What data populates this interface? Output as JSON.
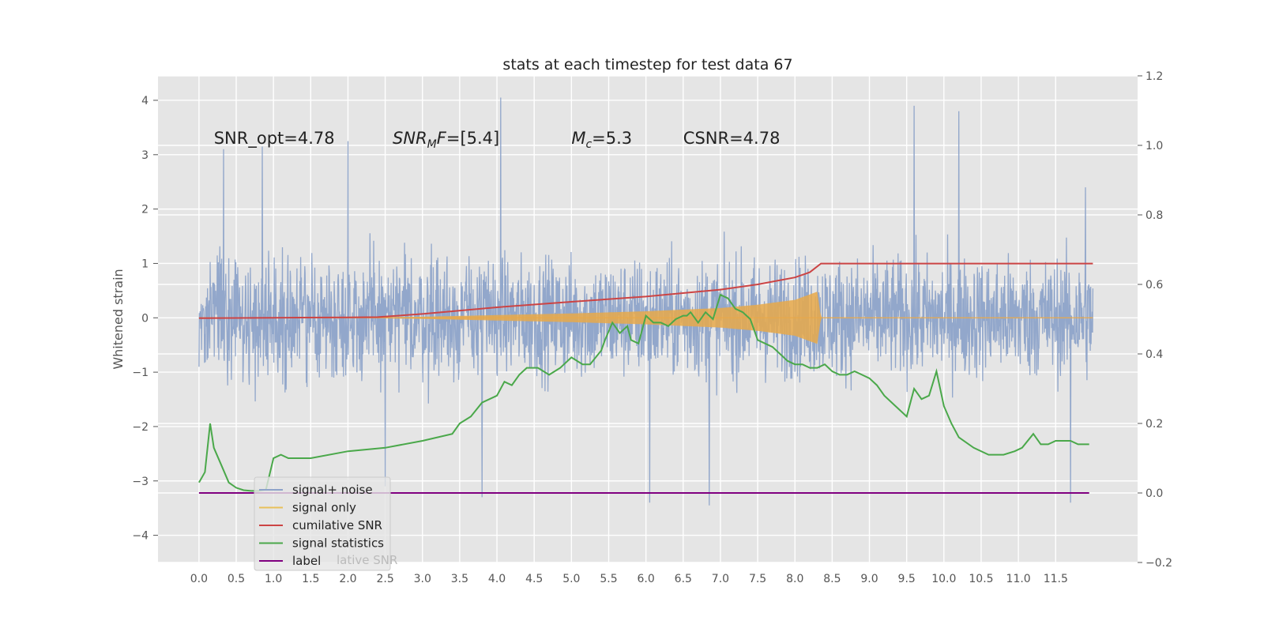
{
  "chart_data": {
    "type": "line",
    "title": "stats at each timestep for test data 67",
    "xlabel": "",
    "ylabel": "Whitened strain",
    "xlim": [
      -0.55,
      12.6
    ],
    "ylim": [
      -4.5,
      4.45
    ],
    "y2lim": [
      -0.2,
      1.2
    ],
    "grid": true,
    "legend_position": "lower-left",
    "x_ticks": [
      "0.0",
      "0.5",
      "1.0",
      "1.5",
      "2.0",
      "2.5",
      "3.0",
      "3.5",
      "4.0",
      "4.5",
      "5.0",
      "5.5",
      "6.0",
      "6.5",
      "7.0",
      "7.5",
      "8.0",
      "8.5",
      "9.0",
      "9.5",
      "10.0",
      "10.5",
      "11.0",
      "11.5"
    ],
    "y_ticks": [
      "4",
      "3",
      "2",
      "1",
      "0",
      "−1",
      "−2",
      "−3",
      "−4"
    ],
    "y2_ticks": [
      "1.2",
      "1.0",
      "0.8",
      "0.6",
      "0.4",
      "0.2",
      "0.0",
      "−0.2"
    ],
    "annotations": [
      {
        "text": "SNR_opt=4.78",
        "x": 0.2,
        "y": 3.2
      },
      {
        "text": "SNR",
        "sub": "M",
        "rest": "F=[5.4]",
        "italic": true,
        "x": 2.6,
        "y": 3.2
      },
      {
        "text": "M",
        "sub": "c",
        "rest": "=5.3",
        "italic": true,
        "x": 5.0,
        "y": 3.2
      },
      {
        "text": "CSNR=4.78",
        "x": 6.5,
        "y": 3.2
      }
    ],
    "legend": [
      {
        "label": "signal+ noise",
        "color": "#8da3c9"
      },
      {
        "label": "signal only",
        "color": "#e8c15a"
      },
      {
        "label": "cumilative SNR",
        "color": "#cc4444"
      },
      {
        "label": "signal statistics",
        "color": "#4aa84a"
      },
      {
        "label": "label",
        "color": "#800080"
      }
    ],
    "legend_overlap_text": "lative SNR",
    "series": [
      {
        "name": "signal+ noise",
        "axis": "left",
        "color": "#8da3c9",
        "x_range": [
          0.0,
          12.0
        ],
        "peaks": [
          {
            "x": 0.0,
            "y": -0.9
          },
          {
            "x": 0.33,
            "y": 3.1
          },
          {
            "x": 0.85,
            "y": 3.15
          },
          {
            "x": 2.0,
            "y": 3.25
          },
          {
            "x": 2.5,
            "y": -3.1
          },
          {
            "x": 4.05,
            "y": 4.05
          },
          {
            "x": 3.8,
            "y": -3.3
          },
          {
            "x": 6.05,
            "y": -3.4
          },
          {
            "x": 6.85,
            "y": -3.45
          },
          {
            "x": 9.6,
            "y": 3.9
          },
          {
            "x": 10.2,
            "y": 3.8
          },
          {
            "x": 11.7,
            "y": -3.4
          },
          {
            "x": 11.9,
            "y": 2.4
          }
        ],
        "typical_envelope": [
          -2.0,
          2.0
        ]
      },
      {
        "name": "signal only",
        "axis": "left",
        "color": "#e8a94a",
        "x": [
          0.0,
          2.0,
          3.0,
          4.0,
          5.0,
          6.0,
          7.0,
          7.5,
          8.0,
          8.3,
          8.35,
          12.0
        ],
        "amplitude": [
          0.0,
          0.0,
          0.02,
          0.05,
          0.08,
          0.12,
          0.18,
          0.24,
          0.33,
          0.48,
          0.0,
          0.0
        ]
      },
      {
        "name": "cumilative SNR",
        "axis": "right",
        "color": "#cc4444",
        "x": [
          0.0,
          1.0,
          2.0,
          2.4,
          3.0,
          4.0,
          5.0,
          6.0,
          7.0,
          7.5,
          8.0,
          8.2,
          8.35,
          12.0
        ],
        "y": [
          0.503,
          0.504,
          0.505,
          0.506,
          0.515,
          0.534,
          0.55,
          0.565,
          0.585,
          0.6,
          0.62,
          0.635,
          0.66,
          0.66
        ]
      },
      {
        "name": "signal statistics",
        "axis": "right",
        "color": "#4aa84a",
        "x": [
          0.0,
          0.08,
          0.15,
          0.2,
          0.3,
          0.4,
          0.5,
          0.6,
          0.7,
          0.8,
          0.9,
          1.0,
          1.1,
          1.2,
          1.5,
          2.0,
          2.5,
          3.0,
          3.4,
          3.5,
          3.65,
          3.8,
          4.0,
          4.1,
          4.2,
          4.3,
          4.4,
          4.55,
          4.7,
          4.85,
          5.0,
          5.15,
          5.25,
          5.4,
          5.45,
          5.55,
          5.65,
          5.75,
          5.8,
          5.9,
          6.0,
          6.1,
          6.2,
          6.3,
          6.4,
          6.5,
          6.55,
          6.6,
          6.7,
          6.8,
          6.9,
          7.0,
          7.1,
          7.2,
          7.3,
          7.4,
          7.5,
          7.6,
          7.7,
          7.8,
          7.9,
          8.0,
          8.1,
          8.2,
          8.3,
          8.4,
          8.5,
          8.6,
          8.7,
          8.8,
          8.9,
          9.0,
          9.1,
          9.2,
          9.35,
          9.5,
          9.6,
          9.7,
          9.8,
          9.9,
          10.0,
          10.1,
          10.2,
          10.4,
          10.6,
          10.8,
          10.95,
          11.05,
          11.2,
          11.3,
          11.4,
          11.5,
          11.7,
          11.8,
          11.95
        ],
        "y": [
          0.03,
          0.06,
          0.2,
          0.13,
          0.08,
          0.03,
          0.015,
          0.008,
          0.006,
          0.006,
          0.01,
          0.1,
          0.11,
          0.1,
          0.1,
          0.12,
          0.13,
          0.15,
          0.17,
          0.2,
          0.22,
          0.26,
          0.28,
          0.32,
          0.31,
          0.34,
          0.36,
          0.36,
          0.34,
          0.36,
          0.39,
          0.37,
          0.37,
          0.41,
          0.44,
          0.49,
          0.46,
          0.48,
          0.44,
          0.43,
          0.51,
          0.49,
          0.49,
          0.48,
          0.5,
          0.51,
          0.51,
          0.52,
          0.49,
          0.52,
          0.5,
          0.57,
          0.56,
          0.53,
          0.52,
          0.5,
          0.44,
          0.43,
          0.42,
          0.4,
          0.38,
          0.37,
          0.37,
          0.36,
          0.36,
          0.37,
          0.35,
          0.34,
          0.34,
          0.35,
          0.34,
          0.33,
          0.31,
          0.28,
          0.25,
          0.22,
          0.3,
          0.27,
          0.28,
          0.35,
          0.25,
          0.2,
          0.16,
          0.13,
          0.11,
          0.11,
          0.12,
          0.13,
          0.17,
          0.14,
          0.14,
          0.15,
          0.15,
          0.14,
          0.14
        ]
      },
      {
        "name": "label",
        "axis": "right",
        "color": "#800080",
        "x": [
          0.0,
          11.95
        ],
        "y": [
          0.0,
          0.0
        ]
      }
    ]
  }
}
